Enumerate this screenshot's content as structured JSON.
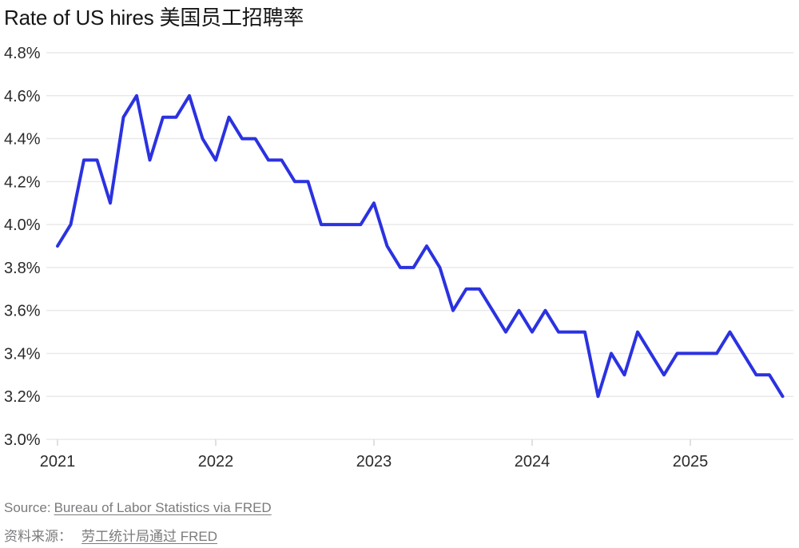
{
  "title": "Rate of US hires 美国员工招聘率",
  "footer": {
    "source_prefix_en": "Source:",
    "source_link_en": "Bureau of Labor Statistics via FRED",
    "source_prefix_zh": "资料来源：",
    "source_link_zh": "劳工统计局通过 FRED"
  },
  "colors": {
    "line": "#2b32e0",
    "grid": "#e9e9e9",
    "tick": "#d6d6d6",
    "title_text": "#161616",
    "axis_text": "#2b2b2b",
    "footer_text": "#7b7b7e"
  },
  "chart_data": {
    "type": "line",
    "title": "Rate of US hires 美国员工招聘率",
    "grid": true,
    "ylim": [
      3.0,
      4.8
    ],
    "y_ticks": [
      4.8,
      4.6,
      4.4,
      4.2,
      4.0,
      3.8,
      3.6,
      3.4,
      3.2,
      3.0
    ],
    "y_tick_labels": [
      "4.8%",
      "4.6%",
      "4.4%",
      "4.2%",
      "4.0%",
      "3.8%",
      "3.6%",
      "3.4%",
      "3.2%",
      "3.0%"
    ],
    "x_tick_labels": [
      "2021",
      "2022",
      "2023",
      "2024",
      "2025"
    ],
    "x": {
      "start": "2021-01",
      "interval": "monthly",
      "points": 56
    },
    "series": [
      {
        "name": "Rate of US hires",
        "unit": "%",
        "values": [
          3.9,
          4.0,
          4.3,
          4.3,
          4.1,
          4.5,
          4.6,
          4.3,
          4.5,
          4.5,
          4.6,
          4.4,
          4.3,
          4.5,
          4.4,
          4.4,
          4.3,
          4.3,
          4.2,
          4.2,
          4.0,
          4.0,
          4.0,
          4.0,
          4.1,
          3.9,
          3.8,
          3.8,
          3.9,
          3.8,
          3.6,
          3.7,
          3.7,
          3.6,
          3.5,
          3.6,
          3.5,
          3.6,
          3.5,
          3.5,
          3.5,
          3.2,
          3.4,
          3.3,
          3.5,
          3.4,
          3.3,
          3.4,
          3.4,
          3.4,
          3.4,
          3.5,
          3.4,
          3.3,
          3.3,
          3.2
        ]
      }
    ]
  }
}
